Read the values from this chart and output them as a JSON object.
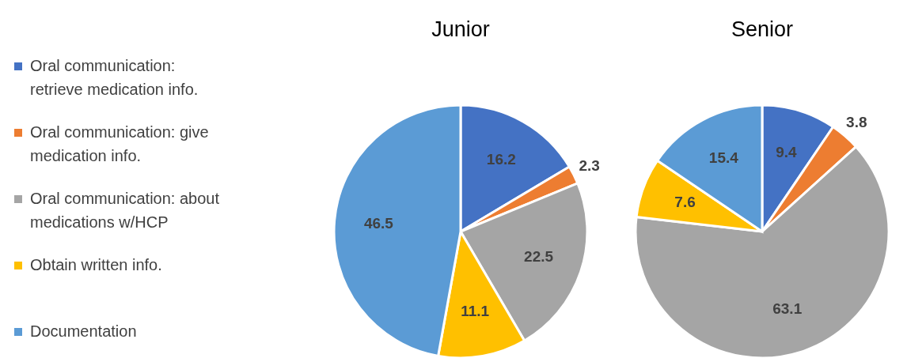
{
  "chart_data": [
    {
      "type": "pie",
      "title": "Junior",
      "categories": [
        "Oral communication: retrieve medication info.",
        "Oral communication: give medication info.",
        "Oral communication: about medications w/HCP",
        "Obtain written info.",
        "Documentation"
      ],
      "values": [
        16.2,
        2.3,
        22.5,
        11.1,
        46.5
      ],
      "colors": [
        "#4472c4",
        "#ed7d31",
        "#a5a5a5",
        "#ffc000",
        "#5b9bd5"
      ],
      "data_labels": true,
      "legend": "left"
    },
    {
      "type": "pie",
      "title": "Senior",
      "categories": [
        null,
        null,
        null,
        null,
        null
      ],
      "values": [
        9.4,
        3.8,
        63.1,
        7.6,
        15.4
      ],
      "colors": [
        "#4472c4",
        "#ed7d31",
        "#a5a5a5",
        "#ffc000",
        "#5b9bd5"
      ],
      "data_labels": true
    }
  ]
}
